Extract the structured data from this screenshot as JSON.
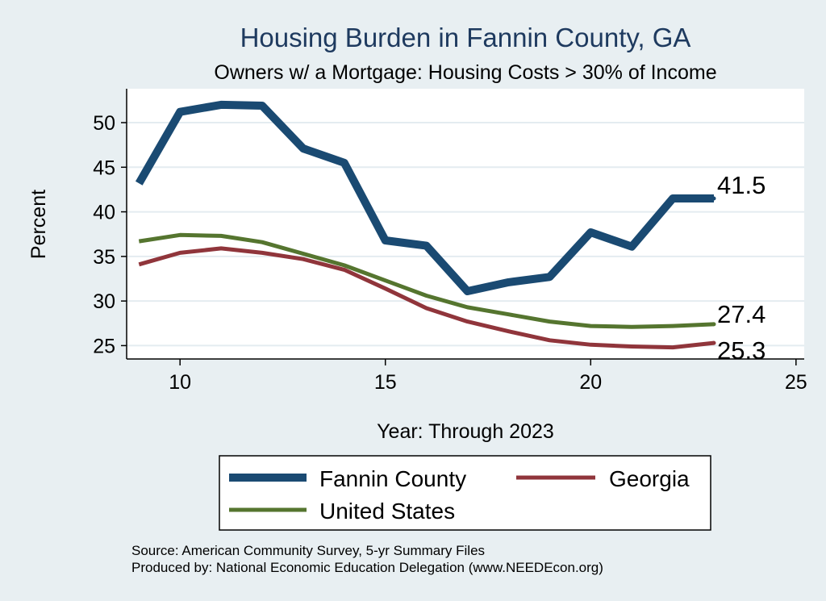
{
  "chart_data": {
    "type": "line",
    "title": "Housing Burden in Fannin County, GA",
    "subtitle": "Owners w/ a Mortgage: Housing Costs > 30% of Income",
    "xlabel": "Year: Through 2023",
    "ylabel": "Percent",
    "xlim": [
      8.7,
      25.2
    ],
    "ylim": [
      23.5,
      53.8
    ],
    "xticks": [
      10,
      15,
      20,
      25
    ],
    "yticks": [
      25,
      30,
      35,
      40,
      45,
      50
    ],
    "grid": true,
    "legend_position": "bottom",
    "x": [
      9,
      10,
      11,
      12,
      13,
      14,
      15,
      16,
      17,
      18,
      19,
      20,
      21,
      22,
      23
    ],
    "series": [
      {
        "name": "Fannin County",
        "color": "#1a4a72",
        "values": [
          43.2,
          51.2,
          52.0,
          51.9,
          47.1,
          45.5,
          36.8,
          36.2,
          31.1,
          32.1,
          32.7,
          37.7,
          36.1,
          41.5,
          41.5
        ],
        "end_label": "41.5"
      },
      {
        "name": "Georgia",
        "color": "#90353b",
        "values": [
          34.1,
          35.4,
          35.9,
          35.4,
          34.7,
          33.5,
          31.4,
          29.2,
          27.7,
          26.6,
          25.6,
          25.1,
          24.9,
          24.8,
          25.3
        ],
        "end_label": "25.3"
      },
      {
        "name": "United States",
        "color": "#55752f",
        "values": [
          36.7,
          37.4,
          37.3,
          36.6,
          35.3,
          34.0,
          32.3,
          30.6,
          29.3,
          28.5,
          27.7,
          27.2,
          27.1,
          27.2,
          27.4
        ],
        "end_label": "27.4"
      }
    ],
    "source_lines": [
      "Source: American Community Survey, 5-yr Summary Files",
      "Produced by: National Economic Education Delegation (www.NEEDEcon.org)"
    ]
  }
}
